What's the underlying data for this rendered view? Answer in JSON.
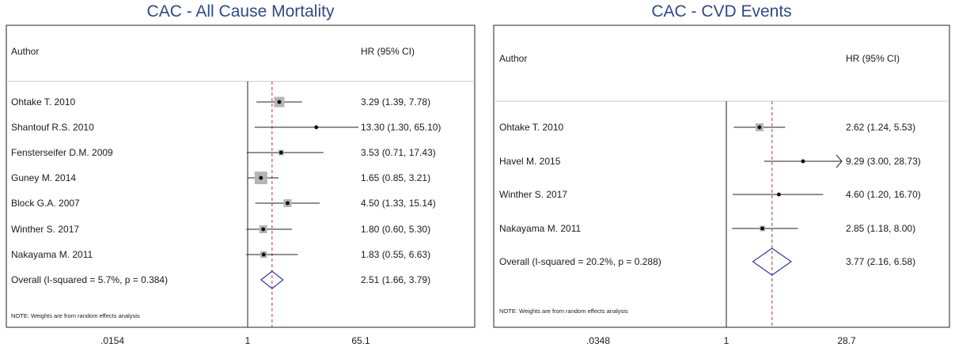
{
  "chart_data": [
    {
      "type": "forest",
      "title": "CAC - All Cause Mortality",
      "col_author": "Author",
      "col_hr": "HR (95% CI)",
      "note": "NOTE: Weights are from random effects analysis",
      "scale": "log",
      "xlim": [
        0.0154,
        65.1
      ],
      "xticks": [
        ".0154",
        "1",
        "65.1"
      ],
      "pooled_line": 2.51,
      "studies": [
        {
          "label": "Ohtake T. 2010",
          "hr": 3.29,
          "lo": 1.39,
          "hi": 7.78,
          "text": "3.29 (1.39, 7.78)",
          "weight": 3
        },
        {
          "label": "Shantouf R.S. 2010",
          "hr": 13.3,
          "lo": 1.3,
          "hi": 65.1,
          "text": "13.30 (1.30, 65.10)",
          "weight": 0
        },
        {
          "label": "Fensterseifer D.M. 2009",
          "hr": 3.53,
          "lo": 0.71,
          "hi": 17.43,
          "text": "3.53 (0.71, 17.43)",
          "weight": 1
        },
        {
          "label": "Guney M. 2014",
          "hr": 1.65,
          "lo": 0.85,
          "hi": 3.21,
          "text": "1.65 (0.85, 3.21)",
          "weight": 4
        },
        {
          "label": "Block G.A. 2007",
          "hr": 4.5,
          "lo": 1.33,
          "hi": 15.14,
          "text": "4.50 (1.33, 15.14)",
          "weight": 2
        },
        {
          "label": "Winther S. 2017",
          "hr": 1.8,
          "lo": 0.6,
          "hi": 5.3,
          "text": "1.80 (0.60, 5.30)",
          "weight": 2
        },
        {
          "label": "Nakayama M. 2011",
          "hr": 1.83,
          "lo": 0.55,
          "hi": 6.63,
          "text": "1.83 (0.55, 6.63)",
          "weight": 1.5
        }
      ],
      "overall": {
        "label": "Overall  (I-squared = 5.7%, p = 0.384)",
        "hr": 2.51,
        "lo": 1.66,
        "hi": 3.79,
        "text": "2.51 (1.66, 3.79)"
      }
    },
    {
      "type": "forest",
      "title": "CAC - CVD Events",
      "col_author": "Author",
      "col_hr": "HR (95% CI)",
      "note": "NOTE: Weights are from random effects analysis",
      "scale": "log",
      "xlim": [
        0.0348,
        28.7
      ],
      "xticks": [
        ".0348",
        "1",
        "28.7"
      ],
      "pooled_line": 3.77,
      "studies": [
        {
          "label": "Ohtake T. 2010",
          "hr": 2.62,
          "lo": 1.24,
          "hi": 5.53,
          "text": "2.62 (1.24, 5.53)",
          "weight": 2
        },
        {
          "label": "Havel M. 2015",
          "hr": 9.29,
          "lo": 3.0,
          "hi": 28.73,
          "text": "9.29 (3.00, 28.73)",
          "weight": 0
        },
        {
          "label": "Winther S. 2017",
          "hr": 4.6,
          "lo": 1.2,
          "hi": 16.7,
          "text": "4.60 (1.20, 16.70)",
          "weight": 0
        },
        {
          "label": "Nakayama M. 2011",
          "hr": 2.85,
          "lo": 1.18,
          "hi": 8.0,
          "text": "2.85 (1.18, 8.00)",
          "weight": 1
        }
      ],
      "overall": {
        "label": "Overall  (I-squared = 20.2%, p = 0.288)",
        "hr": 3.77,
        "lo": 2.16,
        "hi": 6.58,
        "text": "3.77 (2.16, 6.58)"
      }
    }
  ]
}
